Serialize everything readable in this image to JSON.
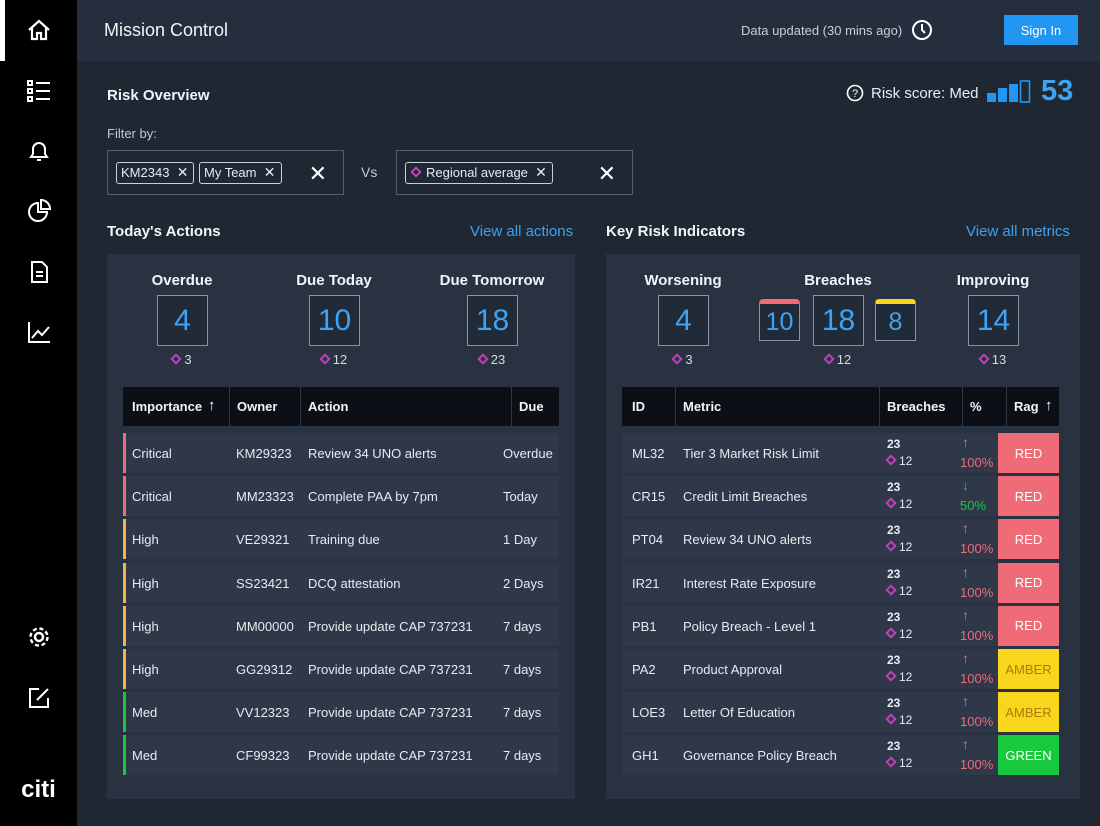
{
  "sidebar": {
    "brand": "citi"
  },
  "header": {
    "title": "Mission Control",
    "updated": "Data updated (30 mins ago)",
    "sign_in": "Sign In"
  },
  "risk_overview": {
    "title": "Risk Overview",
    "risk_score_label": "Risk score: Med",
    "risk_score": 53,
    "filter_label": "Filter by:",
    "filters_left": [
      "KM2343",
      "My Team"
    ],
    "vs": "Vs",
    "filters_right": [
      "Regional average"
    ]
  },
  "actions": {
    "title": "Today's Actions",
    "link": "View all actions",
    "summary": [
      {
        "label": "Overdue",
        "values": [
          4
        ],
        "delta": 3
      },
      {
        "label": "Due Today",
        "values": [
          10
        ],
        "delta": 12
      },
      {
        "label": "Due Tomorrow",
        "values": [
          18
        ],
        "delta": 23
      }
    ],
    "columns": [
      "Importance",
      "Owner",
      "Action",
      "Due"
    ],
    "rows": [
      [
        "Critical",
        "KM29323",
        "Review 34 UNO alerts",
        "Overdue"
      ],
      [
        "Critical",
        "MM23323",
        "Complete PAA by 7pm",
        "Today"
      ],
      [
        "High",
        "VE29321",
        "Training due",
        "1 Day"
      ],
      [
        "High",
        "SS23421",
        "DCQ attestation",
        "2 Days"
      ],
      [
        "High",
        "MM00000",
        "Provide update CAP 737231",
        "7 days"
      ],
      [
        "High",
        "GG29312",
        "Provide update CAP 737231",
        "7 days"
      ],
      [
        "Med",
        "VV12323",
        "Provide update CAP 737231",
        "7 days"
      ],
      [
        "Med",
        "CF99323",
        "Provide update CAP 737231",
        "7 days"
      ]
    ]
  },
  "kri": {
    "title": "Key Risk Indicators",
    "link": "View all metrics",
    "summary": [
      {
        "label": "Worsening",
        "values": [
          4
        ],
        "delta": 3
      },
      {
        "label": "Breaches",
        "values": [
          10,
          18,
          8
        ],
        "delta": 12
      },
      {
        "label": "Improving",
        "values": [
          14
        ],
        "delta": 13
      }
    ],
    "columns": [
      "ID",
      "Metric",
      "Breaches",
      "%",
      "Rag"
    ],
    "rows": [
      {
        "id": "ML32",
        "metric": "Tier 3 Market Risk Limit",
        "breaches": 23,
        "delta": 12,
        "trend": "↑",
        "pct": "100%",
        "rag": "RED"
      },
      {
        "id": "CR15",
        "metric": "Credit Limit Breaches",
        "breaches": 23,
        "delta": 12,
        "trend": "↓",
        "pct": "50%",
        "rag": "RED"
      },
      {
        "id": "PT04",
        "metric": "Review 34 UNO alerts",
        "breaches": 23,
        "delta": 12,
        "trend": "↑",
        "pct": "100%",
        "rag": "RED"
      },
      {
        "id": "IR21",
        "metric": "Interest Rate Exposure",
        "breaches": 23,
        "delta": 12,
        "trend": "↑",
        "pct": "100%",
        "rag": "RED"
      },
      {
        "id": "PB1",
        "metric": "Policy Breach - Level 1",
        "breaches": 23,
        "delta": 12,
        "trend": "↑",
        "pct": "100%",
        "rag": "RED"
      },
      {
        "id": "PA2",
        "metric": "Product Approval",
        "breaches": 23,
        "delta": 12,
        "trend": "↑",
        "pct": "100%",
        "rag": "AMBER"
      },
      {
        "id": "LOE3",
        "metric": "Letter Of Education",
        "breaches": 23,
        "delta": 12,
        "trend": "↑",
        "pct": "100%",
        "rag": "AMBER"
      },
      {
        "id": "GH1",
        "metric": "Governance Policy Breach",
        "breaches": 23,
        "delta": 12,
        "trend": "↑",
        "pct": "100%",
        "rag": "GREEN"
      }
    ]
  }
}
